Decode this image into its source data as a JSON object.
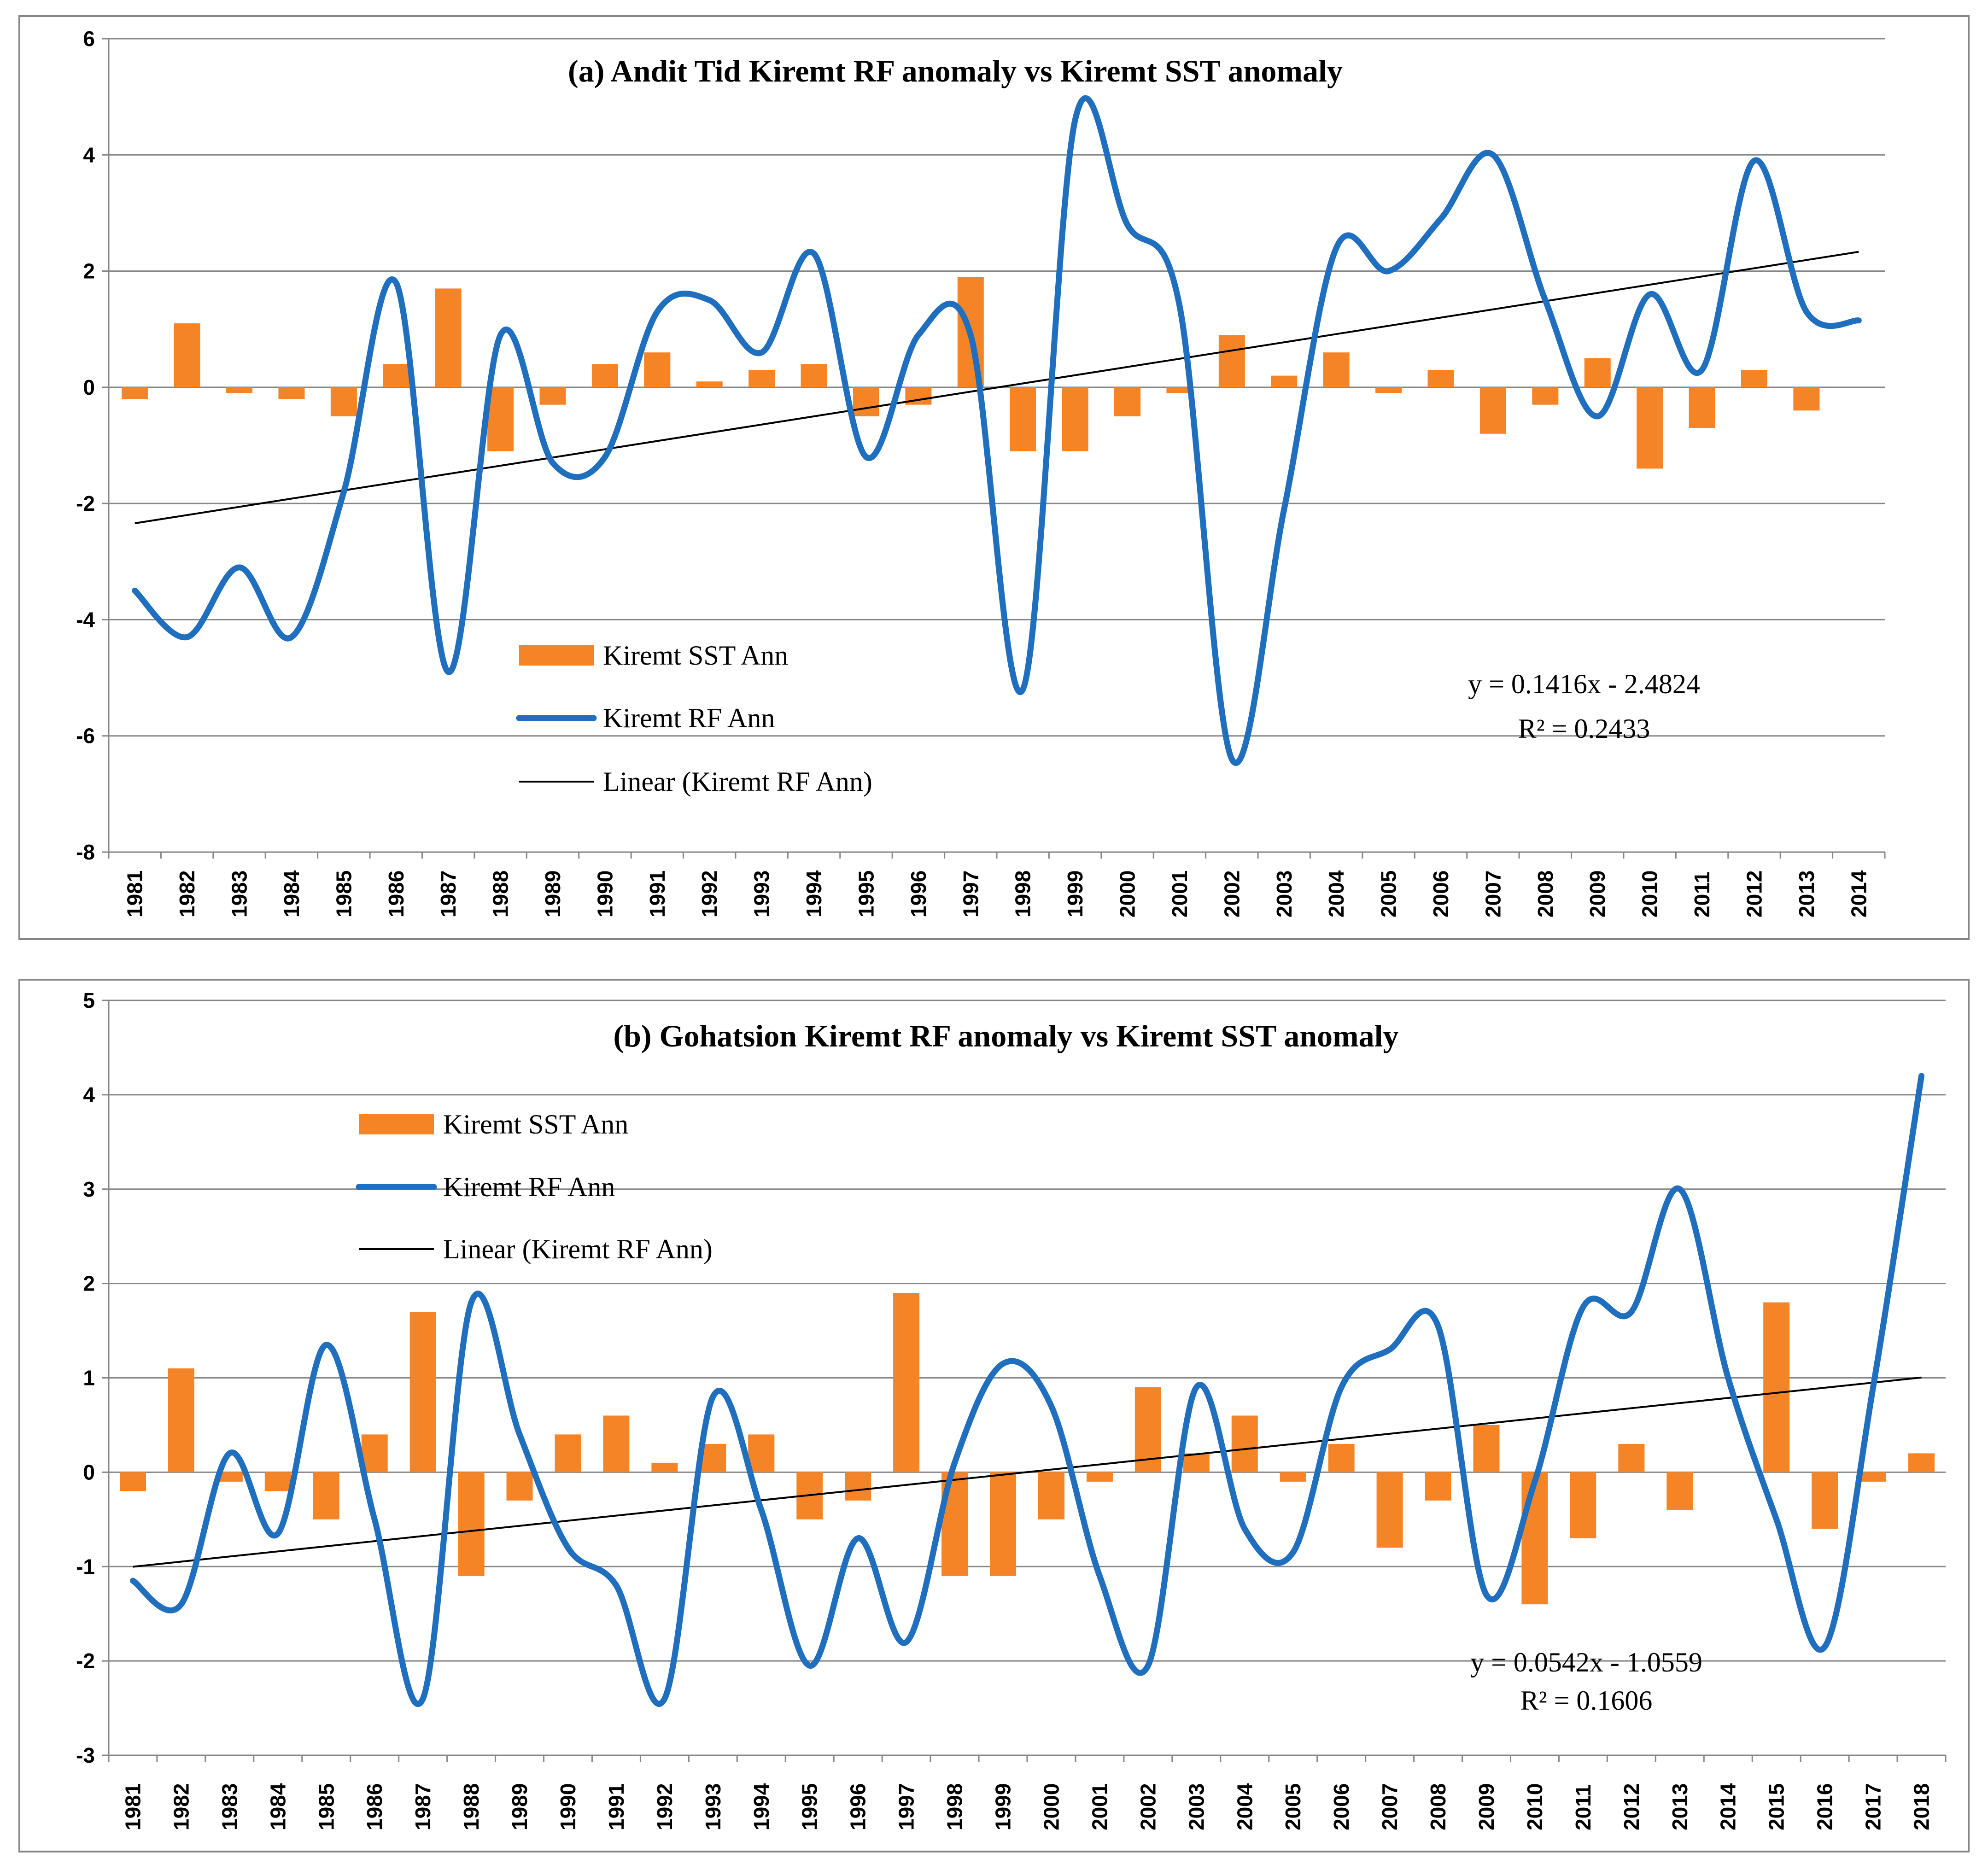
{
  "chart_data": [
    {
      "type": "bar",
      "title": "(a) Andit Tid Kiremt RF anomaly vs Kiremt SST anomaly",
      "xlabel": "",
      "ylabel": "",
      "ylim": [
        -8,
        6
      ],
      "yticks": [
        "6",
        "4",
        "2",
        "0",
        "-2",
        "-4",
        "-6",
        "-8"
      ],
      "grid": true,
      "categories": [
        "1981",
        "1982",
        "1983",
        "1984",
        "1985",
        "1986",
        "1987",
        "1988",
        "1989",
        "1990",
        "1991",
        "1992",
        "1993",
        "1994",
        "1995",
        "1996",
        "1997",
        "1998",
        "1999",
        "2000",
        "2001",
        "2002",
        "2003",
        "2004",
        "2005",
        "2006",
        "2007",
        "2008",
        "2009",
        "2010",
        "2011",
        "2012",
        "2013",
        "2014"
      ],
      "series": [
        {
          "name": "Kiremt SST Ann",
          "kind": "bar",
          "color": "#F58426",
          "values": [
            -0.2,
            1.1,
            -0.1,
            -0.2,
            -0.5,
            0.4,
            1.7,
            -1.1,
            -0.3,
            0.4,
            0.6,
            0.1,
            0.3,
            0.4,
            -0.5,
            -0.3,
            1.9,
            -1.1,
            -1.1,
            -0.5,
            -0.1,
            0.9,
            0.2,
            0.6,
            -0.1,
            0.3,
            -0.8,
            -0.3,
            0.5,
            -1.4,
            -0.7,
            0.3,
            -0.4,
            0.0
          ]
        },
        {
          "name": "Kiremt RF Ann",
          "kind": "line",
          "color": "#1F6FBE",
          "values": [
            -3.5,
            -4.3,
            -3.1,
            -4.3,
            -1.8,
            1.8,
            -4.9,
            0.9,
            -1.3,
            -1.2,
            1.3,
            1.5,
            0.6,
            2.3,
            -1.2,
            0.9,
            0.9,
            -5.2,
            4.6,
            2.8,
            1.4,
            -6.4,
            -2.1,
            2.4,
            2.0,
            2.9,
            4.0,
            1.5,
            -0.5,
            1.6,
            0.3,
            3.9,
            1.3,
            1.15
          ]
        },
        {
          "name": "Linear (Kiremt RF Ann)",
          "kind": "trend",
          "color": "#000000",
          "slope": 0.1416,
          "intercept": -2.4824
        }
      ],
      "legend": {
        "position": "center-left",
        "entries": [
          "Kiremt SST Ann",
          "Kiremt RF Ann",
          "Linear (Kiremt RF Ann)"
        ]
      },
      "annotations": [
        "y = 0.1416x - 2.4824",
        "R² = 0.2433"
      ]
    },
    {
      "type": "bar",
      "title": "(b) Gohatsion Kiremt RF anomaly vs Kiremt SST anomaly",
      "xlabel": "",
      "ylabel": "",
      "ylim": [
        -3,
        5
      ],
      "yticks": [
        "5",
        "4",
        "3",
        "2",
        "1",
        "0",
        "-1",
        "-2",
        "-3"
      ],
      "grid": true,
      "categories": [
        "1981",
        "1982",
        "1983",
        "1984",
        "1985",
        "1986",
        "1987",
        "1988",
        "1989",
        "1990",
        "1991",
        "1992",
        "1993",
        "1994",
        "1995",
        "1996",
        "1997",
        "1998",
        "1999",
        "2000",
        "2001",
        "2002",
        "2003",
        "2004",
        "2005",
        "2006",
        "2007",
        "2008",
        "2009",
        "2010",
        "2011",
        "2012",
        "2013",
        "2014",
        "2015",
        "2016",
        "2017",
        "2018"
      ],
      "series": [
        {
          "name": "Kiremt SST Ann",
          "kind": "bar",
          "color": "#F58426",
          "values": [
            -0.2,
            1.1,
            -0.1,
            -0.2,
            -0.5,
            0.4,
            1.7,
            -1.1,
            -0.3,
            0.4,
            0.6,
            0.1,
            0.3,
            0.4,
            -0.5,
            -0.3,
            1.9,
            -1.1,
            -1.1,
            -0.5,
            -0.1,
            0.9,
            0.2,
            0.6,
            -0.1,
            0.3,
            -0.8,
            -0.3,
            0.5,
            -1.4,
            -0.7,
            0.3,
            -0.4,
            0.0,
            1.8,
            -0.6,
            -0.1,
            0.2
          ]
        },
        {
          "name": "Kiremt RF Ann",
          "kind": "line",
          "color": "#1F6FBE",
          "values": [
            -1.15,
            -1.4,
            0.2,
            -0.65,
            1.35,
            -0.5,
            -2.4,
            1.8,
            0.4,
            -0.8,
            -1.2,
            -2.4,
            0.8,
            -0.4,
            -2.05,
            -0.7,
            -1.8,
            0.1,
            1.15,
            0.7,
            -1.1,
            -2.05,
            0.9,
            -0.6,
            -0.85,
            0.9,
            1.3,
            1.55,
            -1.3,
            -0.1,
            1.75,
            1.7,
            3.0,
            1.0,
            -0.5,
            -1.85,
            0.9,
            4.2
          ]
        },
        {
          "name": "Linear (Kiremt RF Ann)",
          "kind": "trend",
          "color": "#000000",
          "slope": 0.0542,
          "intercept": -1.0559
        }
      ],
      "legend": {
        "position": "top-left",
        "entries": [
          "Kiremt SST Ann",
          "Kiremt RF Ann",
          "Linear (Kiremt RF Ann)"
        ]
      },
      "annotations": [
        "y = 0.0542x - 1.0559",
        "R² = 0.1606"
      ]
    }
  ]
}
